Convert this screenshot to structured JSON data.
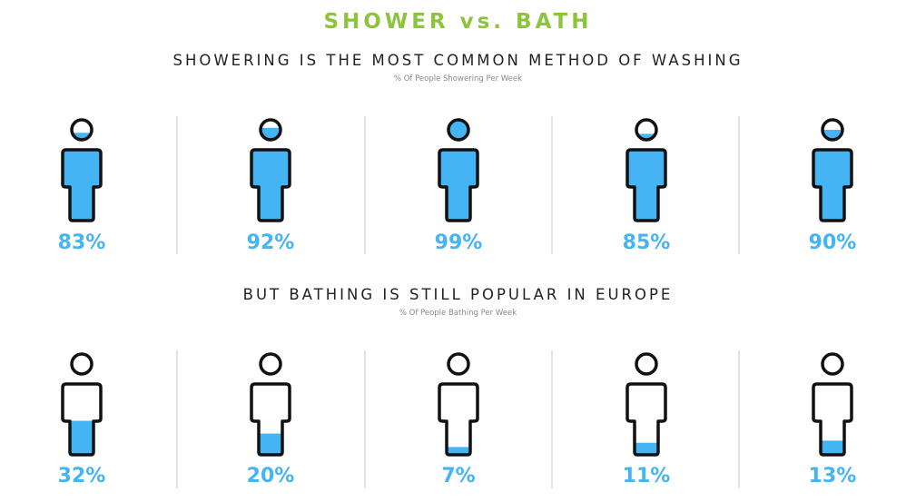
{
  "title": "SHOWER vs. BATH",
  "colors": {
    "title": "#8cc43c",
    "water": "#45b4f4",
    "outline": "#111111",
    "divider": "#e3e3e3"
  },
  "sections": [
    {
      "heading": "SHOWERING IS THE MOST COMMON METHOD OF WASHING",
      "subheading": "% Of People Showering Per Week",
      "figures": [
        {
          "label": "83%",
          "head_fill": 0.35,
          "body_fill": 1.0
        },
        {
          "label": "92%",
          "head_fill": 0.6,
          "body_fill": 1.0
        },
        {
          "label": "99%",
          "head_fill": 1.0,
          "body_fill": 1.0
        },
        {
          "label": "85%",
          "head_fill": 0.3,
          "body_fill": 1.0
        },
        {
          "label": "90%",
          "head_fill": 0.5,
          "body_fill": 1.0
        }
      ]
    },
    {
      "heading": "BUT BATHING IS STILL POPULAR IN EUROPE",
      "subheading": "% Of People Bathing Per Week",
      "figures": [
        {
          "label": "32%",
          "head_fill": 0,
          "body_fill": 0.48
        },
        {
          "label": "20%",
          "head_fill": 0,
          "body_fill": 0.3
        },
        {
          "label": "7%",
          "head_fill": 0,
          "body_fill": 0.11
        },
        {
          "label": "11%",
          "head_fill": 0,
          "body_fill": 0.17
        },
        {
          "label": "13%",
          "head_fill": 0,
          "body_fill": 0.2
        }
      ]
    }
  ]
}
